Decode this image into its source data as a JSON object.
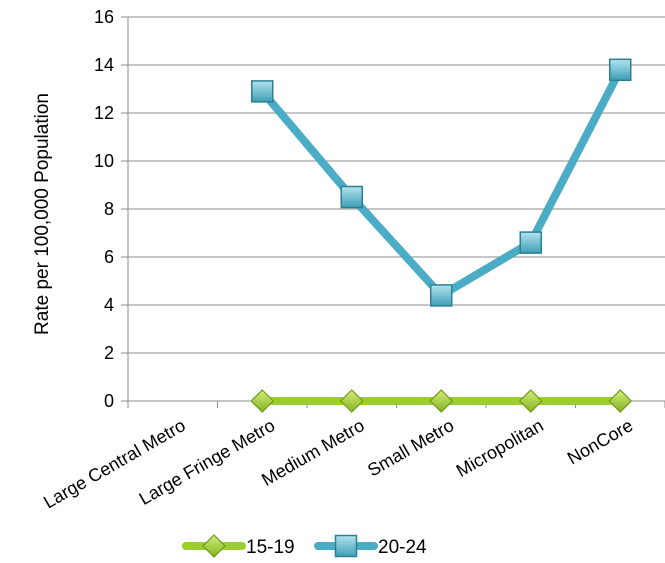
{
  "chart_data": {
    "type": "line",
    "title": "",
    "xlabel": "",
    "ylabel": "Rate per 100,000 Population",
    "ylim": [
      0,
      16
    ],
    "yticks": [
      0,
      2,
      4,
      6,
      8,
      10,
      12,
      14,
      16
    ],
    "grid": true,
    "legend_position": "bottom",
    "categories": [
      "Large Central Metro",
      "Large Fringe Metro",
      "Medium Metro",
      "Small Metro",
      "Micropolitan",
      "NonCore"
    ],
    "series": [
      {
        "name": "15-19",
        "values": [
          null,
          0,
          0,
          0,
          0,
          0
        ],
        "color": "#9acd32",
        "marker": "diamond"
      },
      {
        "name": "20-24",
        "values": [
          null,
          12.9,
          8.5,
          4.4,
          6.6,
          13.8
        ],
        "color": "#4bacc6",
        "marker": "square"
      }
    ]
  }
}
